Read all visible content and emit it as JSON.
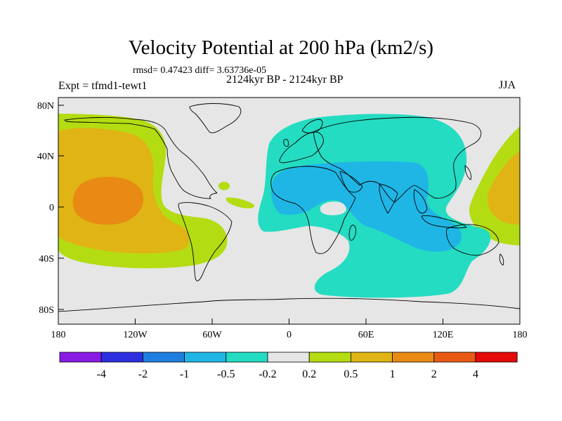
{
  "chart_data": {
    "type": "heatmap",
    "title": "Velocity Potential at 200 hPa (km2/s)",
    "stats_line": "rmsd= 0.47423 diff= 3.63736e-05",
    "period": "2124kyr BP - 2124kyr BP",
    "experiment": "Expt = tfmd1-tewt1",
    "season": "JJA",
    "x_ticks": [
      "180",
      "120W",
      "60W",
      "0",
      "60E",
      "120E",
      "180"
    ],
    "y_ticks": [
      "80N",
      "40N",
      "0",
      "40S",
      "80S"
    ],
    "x_range": [
      -180,
      180
    ],
    "y_range": [
      -90,
      90
    ],
    "colorbar": {
      "labels": [
        "-4",
        "-2",
        "-1",
        "-0.5",
        "-0.2",
        "0.2",
        "0.5",
        "1",
        "2",
        "4"
      ],
      "colors": [
        "#8a1ae6",
        "#2e2ee0",
        "#1f7fe0",
        "#1fb6e6",
        "#24dcc2",
        "#e6e6e6",
        "#b4dc12",
        "#e0b414",
        "#e88a14",
        "#e85a14",
        "#e60a0a"
      ]
    },
    "field_regions": [
      {
        "name": "Central Pacific positive anomaly",
        "level": "0.2 to 0.5"
      },
      {
        "name": "Central Pacific positive anomaly core",
        "level": "0.5 to 1"
      },
      {
        "name": "Central Pacific positive anomaly center",
        "level": "1 to 2"
      },
      {
        "name": "Eastern Hemisphere negative anomaly",
        "level": "-0.5 to -0.2"
      },
      {
        "name": "Indian Ocean / Africa negative anomaly core",
        "level": "-1 to -0.5"
      },
      {
        "name": "Western Pacific positive anomaly",
        "level": "0.2 to 1"
      }
    ]
  }
}
